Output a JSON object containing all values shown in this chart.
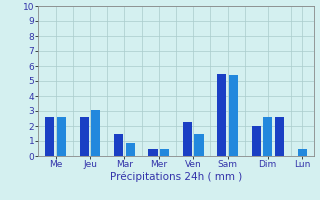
{
  "bars": [
    {
      "x": 1,
      "height": 2.6,
      "color": "#1a3fc4"
    },
    {
      "x": 2,
      "height": 2.6,
      "color": "#2288dd"
    },
    {
      "x": 4,
      "height": 2.6,
      "color": "#1a3fc4"
    },
    {
      "x": 5,
      "height": 3.1,
      "color": "#2288dd"
    },
    {
      "x": 7,
      "height": 1.5,
      "color": "#1a3fc4"
    },
    {
      "x": 8,
      "height": 0.9,
      "color": "#2288dd"
    },
    {
      "x": 10,
      "height": 0.5,
      "color": "#1a3fc4"
    },
    {
      "x": 11,
      "height": 0.5,
      "color": "#2288dd"
    },
    {
      "x": 13,
      "height": 2.3,
      "color": "#1a3fc4"
    },
    {
      "x": 14,
      "height": 1.5,
      "color": "#2288dd"
    },
    {
      "x": 16,
      "height": 5.5,
      "color": "#1a3fc4"
    },
    {
      "x": 17,
      "height": 5.4,
      "color": "#2288dd"
    },
    {
      "x": 19,
      "height": 2.0,
      "color": "#1a3fc4"
    },
    {
      "x": 20,
      "height": 2.6,
      "color": "#2288dd"
    },
    {
      "x": 21,
      "height": 2.6,
      "color": "#1a3fc4"
    },
    {
      "x": 23,
      "height": 0.5,
      "color": "#2288dd"
    }
  ],
  "bar_width": 0.8,
  "background_color": "#d4f0f0",
  "grid_color": "#aacccc",
  "tick_label_color": "#3333aa",
  "axis_label_color": "#3333aa",
  "xlabel": "Précipitations 24h ( mm )",
  "ylim": [
    0,
    10
  ],
  "yticks": [
    0,
    1,
    2,
    3,
    4,
    5,
    6,
    7,
    8,
    9,
    10
  ],
  "xlim": [
    0,
    24
  ],
  "day_labels": [
    {
      "label": "Me",
      "x": 1.5
    },
    {
      "label": "Jeu",
      "x": 4.5
    },
    {
      "label": "Mar",
      "x": 7.5
    },
    {
      "label": "Mer",
      "x": 10.5
    },
    {
      "label": "Ven",
      "x": 13.5
    },
    {
      "label": "Sam",
      "x": 16.5
    },
    {
      "label": "Dim",
      "x": 20.0
    },
    {
      "label": "Lun",
      "x": 23.0
    }
  ],
  "spine_color": "#888888",
  "xlabel_fontsize": 7.5,
  "ylabel_fontsize": 7,
  "tick_fontsize": 6.5
}
